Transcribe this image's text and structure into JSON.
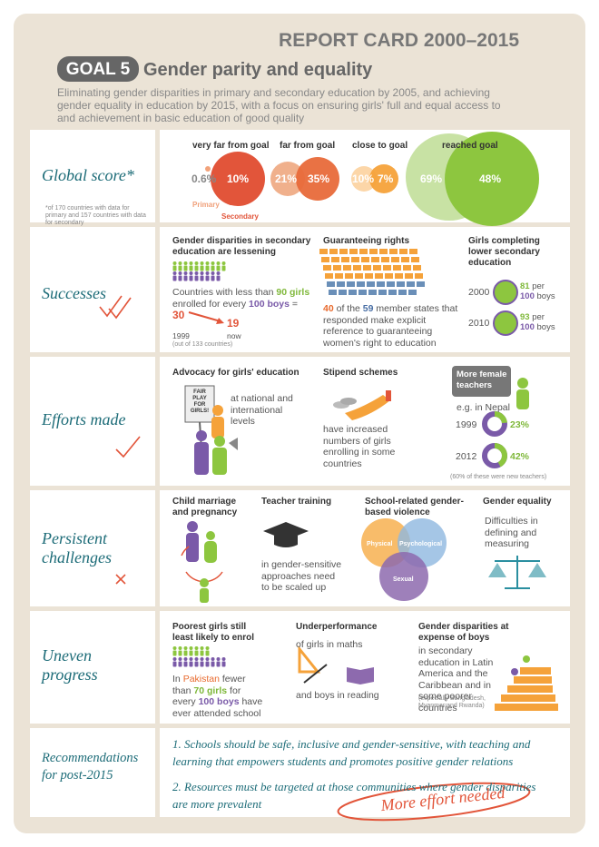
{
  "header": {
    "title": "REPORT CARD 2000–2015",
    "goal": "GOAL 5",
    "heading": "Gender parity and equality",
    "description": "Eliminating gender disparities in primary and secondary education by 2005, and achieving gender equality in education by 2015, with a focus on ensuring girls' full and equal access to and achievement in basic education of good quality"
  },
  "global_score": {
    "label": "Global score*",
    "note": "*of 170 countries with data for primary and 157 countries with data for secondary",
    "levels": [
      {
        "name": "very far from goal",
        "primary": "0.6%",
        "secondary": "10%"
      },
      {
        "name": "far from goal",
        "primary": "21%",
        "secondary": "35%"
      },
      {
        "name": "close to goal",
        "primary": "10%",
        "secondary": "7%"
      },
      {
        "name": "reached goal",
        "primary": "69%",
        "secondary": "48%"
      }
    ],
    "primary_label": "Primary",
    "secondary_label": "Secondary"
  },
  "successes": {
    "label": "Successes",
    "disparities": {
      "title": "Gender disparities in secondary education are lessening",
      "text": [
        "Countries with less than ",
        "90 girls",
        " enrolled for every ",
        "100 boys",
        " ="
      ],
      "before": "30",
      "after": "19",
      "before_year": "1999",
      "after_label": "now",
      "note": "(out of 133 countries)"
    },
    "rights": {
      "title": "Guaranteeing rights",
      "text": [
        "40",
        " of the ",
        "59",
        " member states that responded make explicit reference to guaranteeing women's right to education"
      ]
    },
    "completing": {
      "title": "Girls completing lower secondary education",
      "rows": [
        {
          "year": "2000",
          "girls": "81",
          "per": "per",
          "boys": "100",
          "boys_word": "boys"
        },
        {
          "year": "2010",
          "girls": "93",
          "per": "per",
          "boys": "100",
          "boys_word": "boys"
        }
      ]
    }
  },
  "efforts": {
    "label": "Efforts made",
    "advocacy": {
      "title": "Advocacy for girls' education",
      "text": "at national and international levels",
      "sign": "FAIR PLAY FOR GIRLS!"
    },
    "stipend": {
      "title": "Stipend schemes",
      "text": "have increased numbers of girls enrolling in some countries"
    },
    "teachers": {
      "title": "More female teachers",
      "example": "e.g. in Nepal",
      "rows": [
        {
          "year": "1999",
          "share": 23,
          "share_label": "23%"
        },
        {
          "year": "2012",
          "share": 42,
          "share_label": "42%"
        }
      ],
      "note": "(60% of these were new teachers)"
    }
  },
  "challenges": {
    "label": "Persistent challenges",
    "marriage": {
      "title": "Child marriage and pregnancy"
    },
    "training": {
      "title": "Teacher training",
      "text": "in gender-sensitive approaches need to be scaled up"
    },
    "violence": {
      "title": "School-related gender-based violence",
      "circles": [
        "Physical",
        "Psychological",
        "Sexual"
      ]
    },
    "equality": {
      "title": "Gender equality",
      "text": "Difficulties in defining and measuring"
    }
  },
  "uneven": {
    "label": "Uneven progress",
    "poorest": {
      "title": "Poorest girls still least likely to enrol",
      "text": [
        "In ",
        "Pakistan",
        " fewer than ",
        "70 girls",
        " for every ",
        "100 boys",
        " have ever attended school"
      ]
    },
    "underperformance": {
      "title": "Underperformance",
      "maths": "of girls in maths",
      "reading": "and boys in reading"
    },
    "boys": {
      "title": "Gender disparities at expense of boys",
      "text": "in secondary education in Latin America and the Caribbean and in some poorer countries",
      "note": "(especially Bangladesh, Myanmar and Rwanda)"
    }
  },
  "recommendations": {
    "label": "Recommendations for post-2015",
    "items": [
      "1. Schools should be safe, inclusive and gender-sensitive, with teaching and learning that empowers students and promotes positive gender relations",
      "2. Resources must be targeted at those communities where gender disparities are more prevalent"
    ],
    "stamp": "More effort needed"
  }
}
